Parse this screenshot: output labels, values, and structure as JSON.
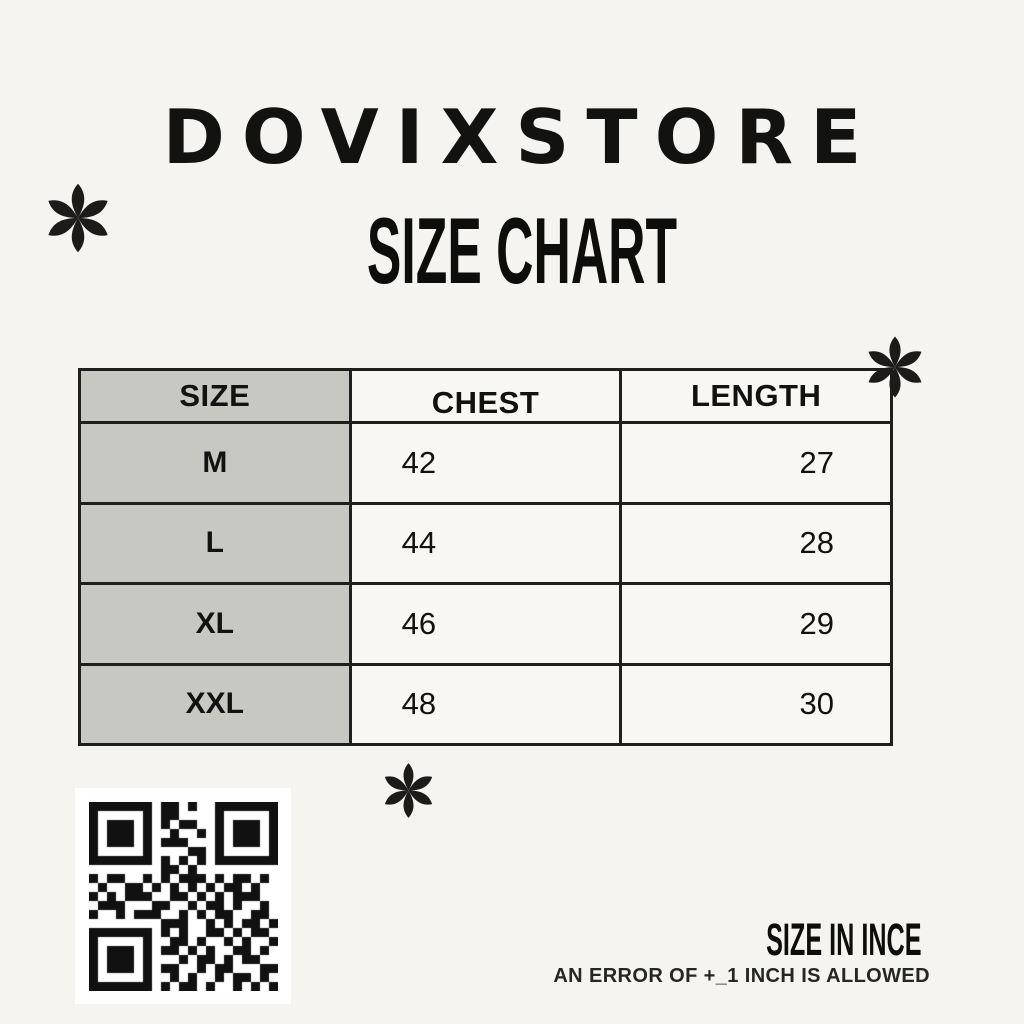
{
  "header": {
    "brand": "DOVIXSTORE",
    "title": "SIZE CHART"
  },
  "table": {
    "columns": [
      "SIZE",
      "CHEST",
      "LENGTH"
    ],
    "rows": [
      [
        "M",
        "42",
        "27"
      ],
      [
        "L",
        "44",
        "28"
      ],
      [
        "XL",
        "46",
        "29"
      ],
      [
        "XXL",
        "48",
        "30"
      ]
    ]
  },
  "chart_data": {
    "type": "table",
    "title": "DOVIXSTORE SIZE CHART",
    "columns": [
      "SIZE",
      "CHEST",
      "LENGTH"
    ],
    "rows": [
      {
        "size": "M",
        "chest": 42,
        "length": 27
      },
      {
        "size": "L",
        "chest": 44,
        "length": 28
      },
      {
        "size": "XL",
        "chest": 46,
        "length": 29
      },
      {
        "size": "XXL",
        "chest": 48,
        "length": 30
      }
    ]
  },
  "footer": {
    "unit_title": "SIZE IN INCE",
    "tolerance_note": "AN ERROR OF +_1 INCH IS ALLOWED"
  },
  "decorations": {
    "asterisk_icon_count": 3,
    "asterisk_color": "#1c1b19"
  },
  "colors": {
    "page_bg": "#f5f4f1",
    "cell_bg": "#f8f7f4",
    "size_column_bg": "#c7c8c2",
    "table_border": "#1f1f1d",
    "text": "#121211"
  },
  "qr": {
    "dark": "#111111",
    "light": "#ffffff",
    "matrix": [
      "111111101101001111111",
      "100000101100001000001",
      "101110101011001011101",
      "101110100100101011101",
      "101110101110001011101",
      "100000100001101000001",
      "111111101010101111111",
      "000000001101000000000",
      "101100101011101011010",
      "010011010101010110100",
      "101011100110101011100",
      "011100011001011010010",
      "100101110010101100110",
      "000000001110010101101",
      "111111101010011010110",
      "100000100110100101001",
      "101110101101010011010",
      "101110100010110101100",
      "101110101100101100011",
      "100000100101001011010",
      "111111101011010010101"
    ]
  }
}
